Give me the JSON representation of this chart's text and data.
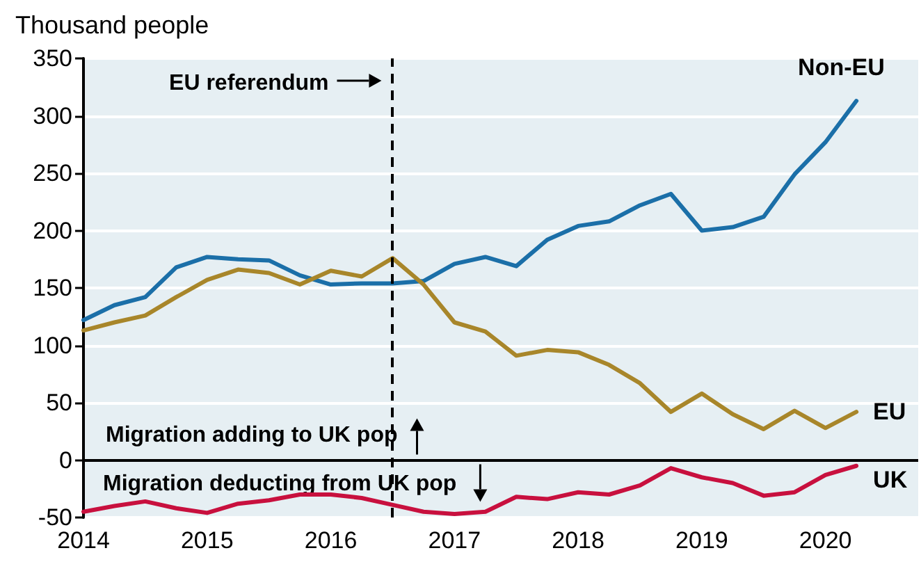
{
  "chart_data": {
    "type": "line",
    "ylabel": "Thousand people",
    "x": [
      2014,
      2014.25,
      2014.5,
      2014.75,
      2015,
      2015.25,
      2015.5,
      2015.75,
      2016,
      2016.25,
      2016.5,
      2016.75,
      2017,
      2017.25,
      2017.5,
      2017.75,
      2018,
      2018.25,
      2018.5,
      2018.75,
      2019,
      2019.25,
      2019.5,
      2019.75,
      2020,
      2020.25
    ],
    "series": [
      {
        "name": "Non-EU",
        "color": "#1b6fa8",
        "values": [
          122,
          135,
          142,
          168,
          177,
          175,
          174,
          161,
          153,
          154,
          154,
          156,
          171,
          177,
          169,
          192,
          204,
          208,
          222,
          232,
          200,
          203,
          212,
          249,
          277,
          313
        ]
      },
      {
        "name": "EU",
        "color": "#a8862a",
        "values": [
          113,
          120,
          126,
          142,
          157,
          166,
          163,
          153,
          165,
          160,
          176,
          153,
          120,
          112,
          91,
          96,
          94,
          83,
          67,
          42,
          58,
          40,
          27,
          43,
          28,
          42
        ]
      },
      {
        "name": "UK",
        "color": "#c8103e",
        "values": [
          -45,
          -40,
          -36,
          -42,
          -46,
          -38,
          -35,
          -30,
          -30,
          -33,
          -39,
          -45,
          -47,
          -45,
          -32,
          -34,
          -28,
          -30,
          -22,
          -7,
          -15,
          -20,
          -31,
          -28,
          -13,
          -5
        ]
      }
    ],
    "xlim": [
      2014,
      2020.75
    ],
    "xticks": [
      2014,
      2015,
      2016,
      2017,
      2018,
      2019,
      2020
    ],
    "ylim": [
      -50,
      350
    ],
    "yticks": [
      -50,
      0,
      50,
      100,
      150,
      200,
      250,
      300,
      350
    ],
    "grid": "y",
    "legend": false,
    "marker": "none",
    "line_style": "solid",
    "ref_lines": [
      {
        "axis": "x",
        "value": 2016.5,
        "label": "EU referendum",
        "line_style": "dashed",
        "color": "#000000"
      }
    ],
    "annotations": [
      "Migration adding to UK pop",
      "Migration deducting from UK pop"
    ]
  }
}
